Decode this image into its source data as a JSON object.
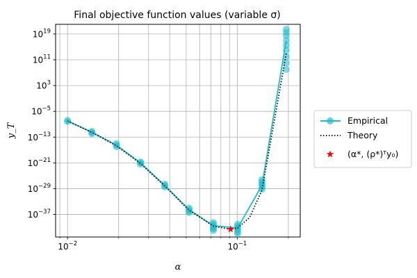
{
  "chart_data": {
    "type": "line",
    "title": "Final objective function values (variable σ)",
    "xlabel": "α",
    "ylabel": "y_T",
    "x_scale": "log",
    "y_scale": "log",
    "xlim": [
      0.0085,
      0.235
    ],
    "ylim_exponent": [
      -44,
      22
    ],
    "x_ticks": [
      {
        "value": 0.01,
        "base": "10",
        "exp": "−2"
      },
      {
        "value": 0.1,
        "base": "10",
        "exp": "−1"
      }
    ],
    "y_ticks": [
      {
        "exp_value": 19,
        "base": "10",
        "exp": "19"
      },
      {
        "exp_value": 11,
        "base": "10",
        "exp": "11"
      },
      {
        "exp_value": 3,
        "base": "10",
        "exp": "3"
      },
      {
        "exp_value": -5,
        "base": "10",
        "exp": "−5"
      },
      {
        "exp_value": -13,
        "base": "10",
        "exp": "−13"
      },
      {
        "exp_value": -21,
        "base": "10",
        "exp": "−21"
      },
      {
        "exp_value": -29,
        "base": "10",
        "exp": "−29"
      },
      {
        "exp_value": -37,
        "base": "10",
        "exp": "−37"
      }
    ],
    "grid": true,
    "legend_position": "outside-right",
    "series": [
      {
        "name": "Empirical",
        "style": "line-markers",
        "color": "#17becf",
        "x": [
          0.01,
          0.0139,
          0.0194,
          0.0269,
          0.0374,
          0.052,
          0.0723,
          0.1005,
          0.1398,
          0.1944
        ],
        "y_exponent": [
          -8.0,
          -11.5,
          -15.5,
          -21.0,
          -28.0,
          -35.5,
          -40.5,
          -41.2,
          -28.0,
          17.0
        ],
        "scatter_y_exponent": [
          [
            -7.8,
            -8.2
          ],
          [
            -11.2,
            -11.6,
            -11.9
          ],
          [
            -15.0,
            -15.5,
            -16.0
          ],
          [
            -20.7,
            -21.0,
            -21.4
          ],
          [
            -27.6,
            -28.0,
            -28.5
          ],
          [
            -35.0,
            -35.5,
            -36.0,
            -36.4
          ],
          [
            -39.5,
            -40.0,
            -40.5,
            -41.0,
            -41.5,
            -42.0
          ],
          [
            -40.0,
            -40.6,
            -41.2,
            -41.8,
            -42.4,
            -43.0
          ],
          [
            -26.2,
            -26.8,
            -27.4,
            -28.0,
            -28.6,
            -29.2
          ],
          [
            8.0,
            10.0,
            12.0,
            14.0,
            15.5,
            17.0,
            18.5,
            19.5,
            20.5
          ]
        ]
      },
      {
        "name": "Theory",
        "style": "dotted",
        "color": "#000000",
        "x": [
          0.01,
          0.0139,
          0.0194,
          0.0269,
          0.0374,
          0.052,
          0.0723,
          0.0913,
          0.1005,
          0.118,
          0.1398,
          0.1944
        ],
        "y_exponent": [
          -8.0,
          -11.5,
          -15.7,
          -21.2,
          -28.2,
          -35.7,
          -40.6,
          -41.6,
          -41.2,
          -38.0,
          -29.5,
          13.0
        ]
      },
      {
        "name": "(α*, (ρ*)ᵀy₀)",
        "style": "star",
        "color": "#ff0000",
        "x": [
          0.0913
        ],
        "y_exponent": [
          -41.6
        ]
      }
    ]
  },
  "legend": {
    "items": [
      {
        "label": "Empirical"
      },
      {
        "label": "Theory"
      },
      {
        "label": "(α*, (ρ*)ᵀy₀)"
      }
    ]
  }
}
